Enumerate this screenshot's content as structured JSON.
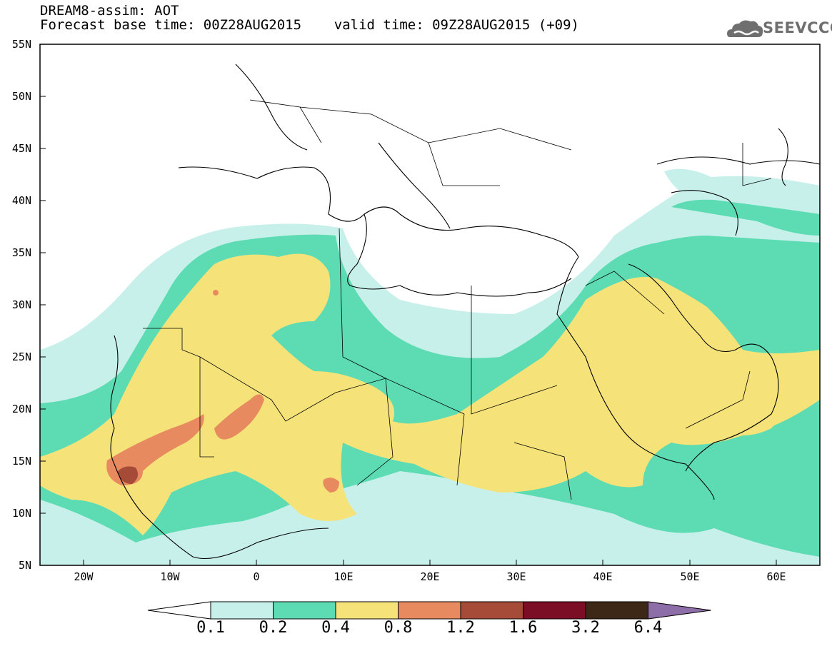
{
  "title": {
    "line1": "DREAM8-assim: AOT",
    "line2": "Forecast base time: 00Z28AUG2015    valid time: 09Z28AUG2015 (+09)"
  },
  "logo": {
    "text": "SEEVCCC",
    "icon": "cloud-icon"
  },
  "map": {
    "region": "North Africa, Mediterranean, Middle East",
    "lon_range": [
      -25,
      65
    ],
    "lat_range": [
      5,
      55
    ],
    "lat_ticks": [
      "55N",
      "50N",
      "45N",
      "40N",
      "35N",
      "30N",
      "25N",
      "20N",
      "15N",
      "10N",
      "5N"
    ],
    "lon_ticks": [
      "20W",
      "10W",
      "0",
      "10E",
      "20E",
      "30E",
      "40E",
      "50E",
      "60E"
    ],
    "field": "Aerosol Optical Thickness (AOT)"
  },
  "colorbar": {
    "levels": [
      "0.1",
      "0.2",
      "0.4",
      "0.8",
      "1.2",
      "1.6",
      "3.2",
      "6.4"
    ],
    "colors": [
      "#c8f0eb",
      "#5ddcb3",
      "#f5e37a",
      "#e88a5f",
      "#a54b37",
      "#7b0d24",
      "#3d2817",
      "#8e6ea8"
    ],
    "extend": "both"
  }
}
